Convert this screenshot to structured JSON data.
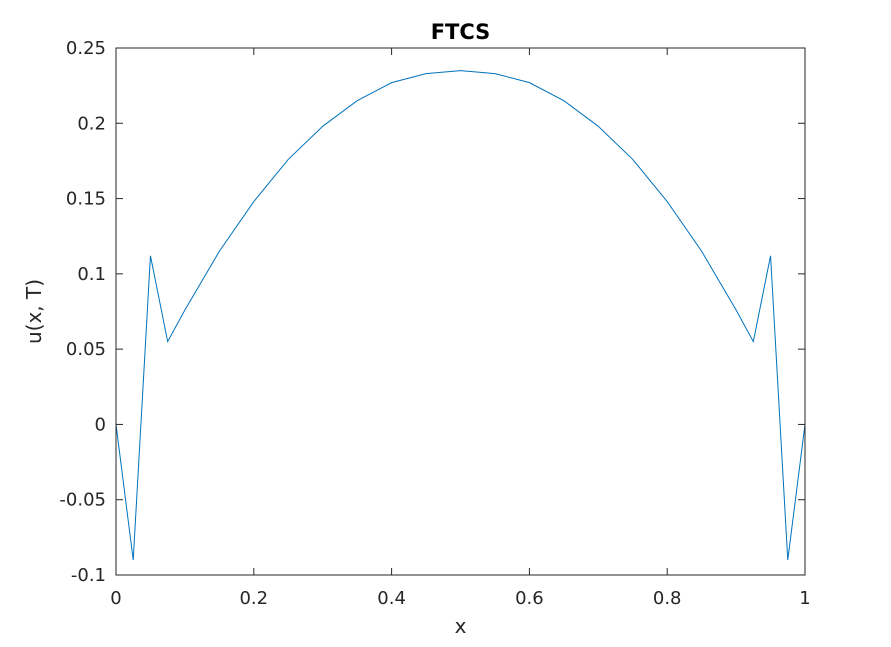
{
  "chart_data": {
    "type": "line",
    "title": "FTCS",
    "xlabel": "x",
    "ylabel": "u(x, T)",
    "xlim": [
      0,
      1
    ],
    "ylim": [
      -0.1,
      0.25
    ],
    "xticks": [
      0,
      0.2,
      0.4,
      0.6,
      0.8,
      1
    ],
    "xtick_labels": [
      "0",
      "0.2",
      "0.4",
      "0.6",
      "0.8",
      "1"
    ],
    "yticks": [
      -0.1,
      -0.05,
      0,
      0.05,
      0.1,
      0.15,
      0.2,
      0.25
    ],
    "ytick_labels": [
      "-0.1",
      "-0.05",
      "0",
      "0.05",
      "0.1",
      "0.15",
      "0.2",
      "0.25"
    ],
    "grid": false,
    "line_color": "#0072bd",
    "series": [
      {
        "x": [
          0,
          0.025,
          0.05,
          0.075,
          0.1,
          0.15,
          0.2,
          0.25,
          0.3,
          0.35,
          0.4,
          0.45,
          0.5,
          0.55,
          0.6,
          0.65,
          0.7,
          0.75,
          0.8,
          0.85,
          0.9,
          0.925,
          0.95,
          0.975,
          1
        ],
        "y": [
          0,
          -0.09,
          0.112,
          0.055,
          0.076,
          0.115,
          0.148,
          0.176,
          0.198,
          0.215,
          0.227,
          0.233,
          0.235,
          0.233,
          0.227,
          0.215,
          0.198,
          0.176,
          0.148,
          0.115,
          0.076,
          0.055,
          0.112,
          -0.09,
          0
        ]
      }
    ]
  }
}
